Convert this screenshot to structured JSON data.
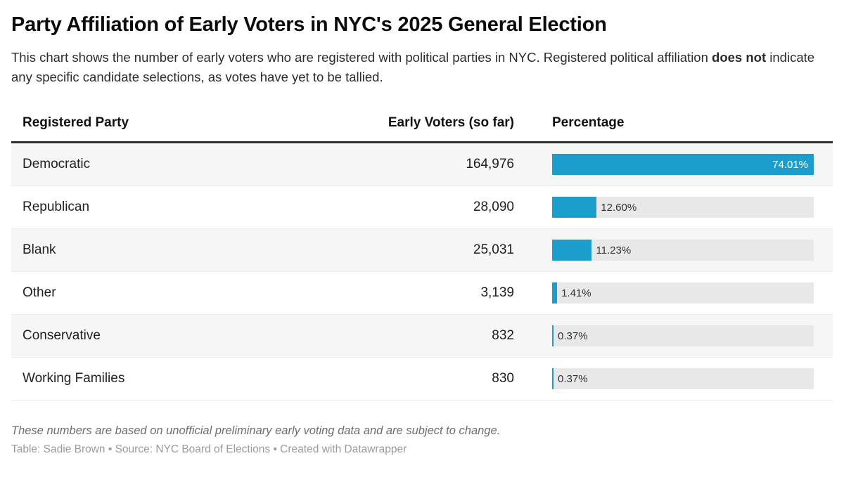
{
  "header": {
    "title": "Party Affiliation of Early Voters in NYC's 2025 General Election",
    "description": {
      "part1": "This chart shows the number of early voters who are registered with political parties in NYC. Registered political affiliation ",
      "bold": "does not",
      "part2": " indicate any specific candidate selections, as votes have yet to be tallied."
    }
  },
  "table": {
    "columns": [
      "Registered Party",
      "Early Voters (so far)",
      "Percentage"
    ],
    "rows": [
      {
        "party": "Democratic",
        "voters": "164,976",
        "pct": 74.01,
        "pct_label": "74.01%"
      },
      {
        "party": "Republican",
        "voters": "28,090",
        "pct": 12.6,
        "pct_label": "12.60%"
      },
      {
        "party": "Blank",
        "voters": "25,031",
        "pct": 11.23,
        "pct_label": "11.23%"
      },
      {
        "party": "Other",
        "voters": "3,139",
        "pct": 1.41,
        "pct_label": "1.41%"
      },
      {
        "party": "Conservative",
        "voters": "832",
        "pct": 0.37,
        "pct_label": "0.37%"
      },
      {
        "party": "Working Families",
        "voters": "830",
        "pct": 0.37,
        "pct_label": "0.37%"
      }
    ]
  },
  "chart_data": {
    "type": "table",
    "title": "Party Affiliation of Early Voters in NYC's 2025 General Election",
    "subtitle": "This chart shows the number of early voters who are registered with political parties in NYC. Registered political affiliation does not indicate any specific candidate selections, as votes have yet to be tallied.",
    "columns": [
      "Registered Party",
      "Early Voters (so far)",
      "Percentage"
    ],
    "categories": [
      "Democratic",
      "Republican",
      "Blank",
      "Other",
      "Conservative",
      "Working Families"
    ],
    "series": [
      {
        "name": "Early Voters (so far)",
        "values": [
          164976,
          28090,
          25031,
          3139,
          832,
          830
        ]
      },
      {
        "name": "Percentage",
        "values": [
          74.01,
          12.6,
          11.23,
          1.41,
          0.37,
          0.37
        ]
      }
    ],
    "bar_scale_max": 74.01,
    "bar_color": "#1c9ecd",
    "track_color": "#e8e8e8",
    "stripe_color": "#f6f6f6"
  },
  "footer": {
    "note": "These numbers are based on unofficial preliminary early voting data and are subject to change.",
    "credits": "Table: Sadie Brown • Source: NYC Board of Elections • Created with Datawrapper"
  }
}
